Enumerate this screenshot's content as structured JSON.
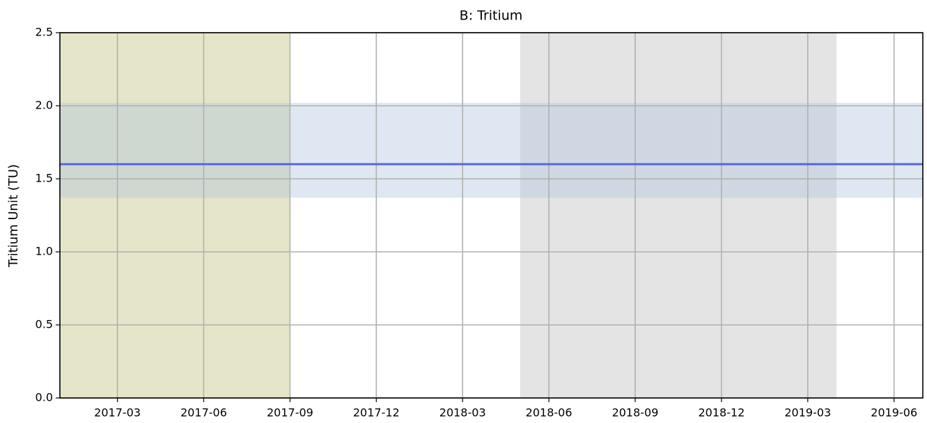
{
  "chart_data": {
    "type": "line",
    "title": "B: Tritium",
    "ylabel": "Tritium Unit (TU)",
    "x": [
      "2017-01",
      "2019-07"
    ],
    "series": [
      {
        "color": "#5a64e0",
        "values": [
          1.6,
          1.6
        ]
      }
    ],
    "xspans": [
      {
        "x": [
          "2017-01",
          "2017-09"
        ],
        "color": "#e5e5c9"
      },
      {
        "x": [
          "2018-05",
          "2019-04"
        ],
        "color": "#e4e4e4"
      }
    ],
    "yband": {
      "y": [
        1.37,
        2.02
      ],
      "color": "#b0c4de",
      "opacity": 0.4
    },
    "xlim": [
      "2017-01",
      "2019-07"
    ],
    "xticks": [
      "2017-03",
      "2017-06",
      "2017-09",
      "2017-12",
      "2018-03",
      "2018-06",
      "2018-09",
      "2018-12",
      "2019-03",
      "2019-06"
    ],
    "ylim": [
      0,
      2.5
    ],
    "yticks": [
      {
        "value": 0,
        "label": "0.0"
      },
      0.5,
      {
        "value": 1,
        "label": "1.0"
      },
      1.5,
      {
        "value": 2,
        "label": "2.0"
      },
      2.5
    ],
    "grid": true
  }
}
